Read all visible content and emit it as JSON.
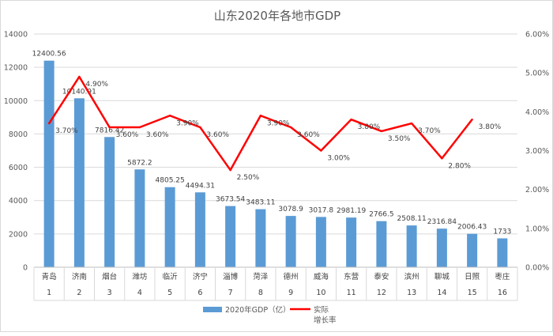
{
  "chart_data": {
    "type": "bar",
    "title": "山东2020年各地市GDP",
    "categories": [
      "青岛",
      "济南",
      "烟台",
      "潍坊",
      "临沂",
      "济宁",
      "淄博",
      "菏泽",
      "德州",
      "威海",
      "东营",
      "泰安",
      "滨州",
      "聊城",
      "日照",
      "枣庄"
    ],
    "category_numbers": [
      "1",
      "2",
      "3",
      "4",
      "5",
      "6",
      "7",
      "8",
      "9",
      "10",
      "11",
      "12",
      "13",
      "14",
      "15",
      "16"
    ],
    "series": [
      {
        "name": "2020年GDP（亿）",
        "type": "bar",
        "axis": "left",
        "color": "#5b9bd5",
        "values": [
          12400.56,
          10140.91,
          7816.42,
          5872.2,
          4805.25,
          4494.31,
          3673.54,
          3483.11,
          3078.9,
          3017.8,
          2981.19,
          2766.5,
          2508.11,
          2316.84,
          2006.43,
          1733
        ],
        "labels": [
          "12400.56",
          "10140.91",
          "7816.42",
          "5872.2",
          "4805.25",
          "4494.31",
          "3673.54",
          "3483.11",
          "3078.9",
          "3017.8",
          "2981.19",
          "2766.5",
          "2508.11",
          "2316.84",
          "2006.43",
          "1733"
        ]
      },
      {
        "name": "实际增长率",
        "name_lines": [
          "实际",
          "增长率"
        ],
        "type": "line",
        "axis": "right",
        "color": "#ff0000",
        "values": [
          3.7,
          4.9,
          3.6,
          3.6,
          3.9,
          3.6,
          2.5,
          3.9,
          3.6,
          3.0,
          3.8,
          3.5,
          3.7,
          2.8,
          3.8,
          null
        ],
        "labels": [
          "3.70%",
          "4.90%",
          "3.60%",
          "3.60%",
          "3.90%",
          "3.60%",
          "2.50%",
          "3.90%",
          "3.60%",
          "3.00%",
          "3.80%",
          "3.50%",
          "3.70%",
          "2.80%",
          "3.80%",
          ""
        ]
      }
    ],
    "y_left": {
      "min": 0,
      "max": 14000,
      "ticks": [
        "0",
        "2000",
        "4000",
        "6000",
        "8000",
        "10000",
        "12000",
        "14000"
      ]
    },
    "y_right": {
      "min": 0,
      "max": 6,
      "ticks": [
        "0.00%",
        "1.00%",
        "2.00%",
        "3.00%",
        "4.00%",
        "5.00%",
        "6.00%"
      ]
    },
    "grid": true,
    "legend_position": "bottom"
  }
}
